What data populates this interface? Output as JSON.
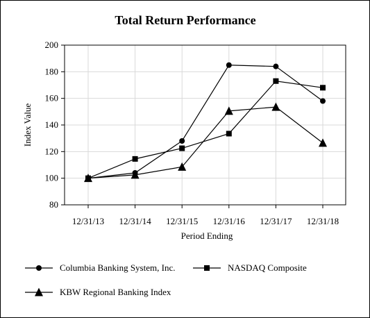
{
  "chart_data": {
    "type": "line",
    "title": "Total Return Performance",
    "xlabel": "Period Ending",
    "ylabel": "Index Value",
    "categories": [
      "12/31/13",
      "12/31/14",
      "12/31/15",
      "12/31/16",
      "12/31/17",
      "12/31/18"
    ],
    "ylim": [
      80,
      200
    ],
    "yticks": [
      80,
      100,
      120,
      140,
      160,
      180,
      200
    ],
    "grid": true,
    "legend_position": "bottom",
    "series": [
      {
        "name": "Columbia Banking System, Inc.",
        "marker": "circle",
        "values": [
          100,
          104,
          128,
          185,
          184,
          158
        ]
      },
      {
        "name": "NASDAQ Composite",
        "marker": "square",
        "values": [
          100,
          114.5,
          122.5,
          133.5,
          173,
          168
        ]
      },
      {
        "name": "KBW Regional Banking Index",
        "marker": "triangle",
        "values": [
          100,
          102.5,
          108.5,
          150.5,
          153.5,
          126.5
        ]
      }
    ],
    "colors": {
      "line": "#000000",
      "grid": "#d9d9d9"
    }
  }
}
